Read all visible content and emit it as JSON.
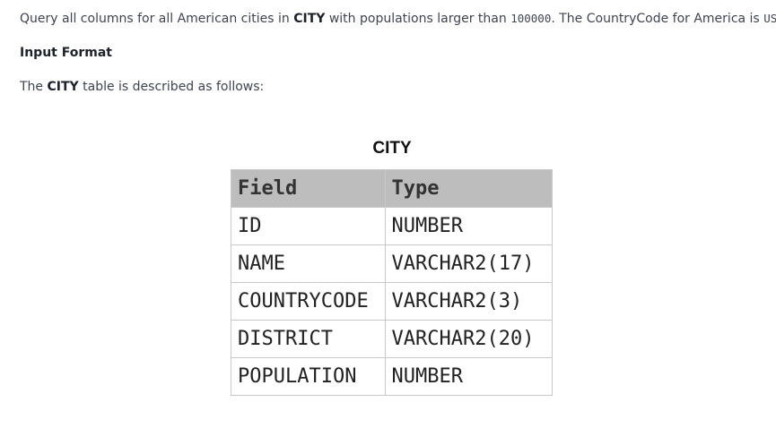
{
  "intro": {
    "prefix": "Query all columns for all American cities in ",
    "table_name": "CITY",
    "middle": " with populations larger than ",
    "threshold": "100000",
    "after_threshold": ". The CountryCode for America is ",
    "country_code": "USA",
    "suffix": "."
  },
  "section_heading": "Input Format",
  "description": {
    "prefix": "The ",
    "table_name": "CITY",
    "suffix": " table is described as follows:"
  },
  "figure": {
    "title": "CITY",
    "headers": [
      "Field",
      "Type"
    ],
    "rows": [
      [
        "ID",
        "NUMBER"
      ],
      [
        "NAME",
        "VARCHAR2(17)"
      ],
      [
        "COUNTRYCODE",
        "VARCHAR2(3)"
      ],
      [
        "DISTRICT",
        "VARCHAR2(20)"
      ],
      [
        "POPULATION",
        "NUMBER"
      ]
    ]
  }
}
